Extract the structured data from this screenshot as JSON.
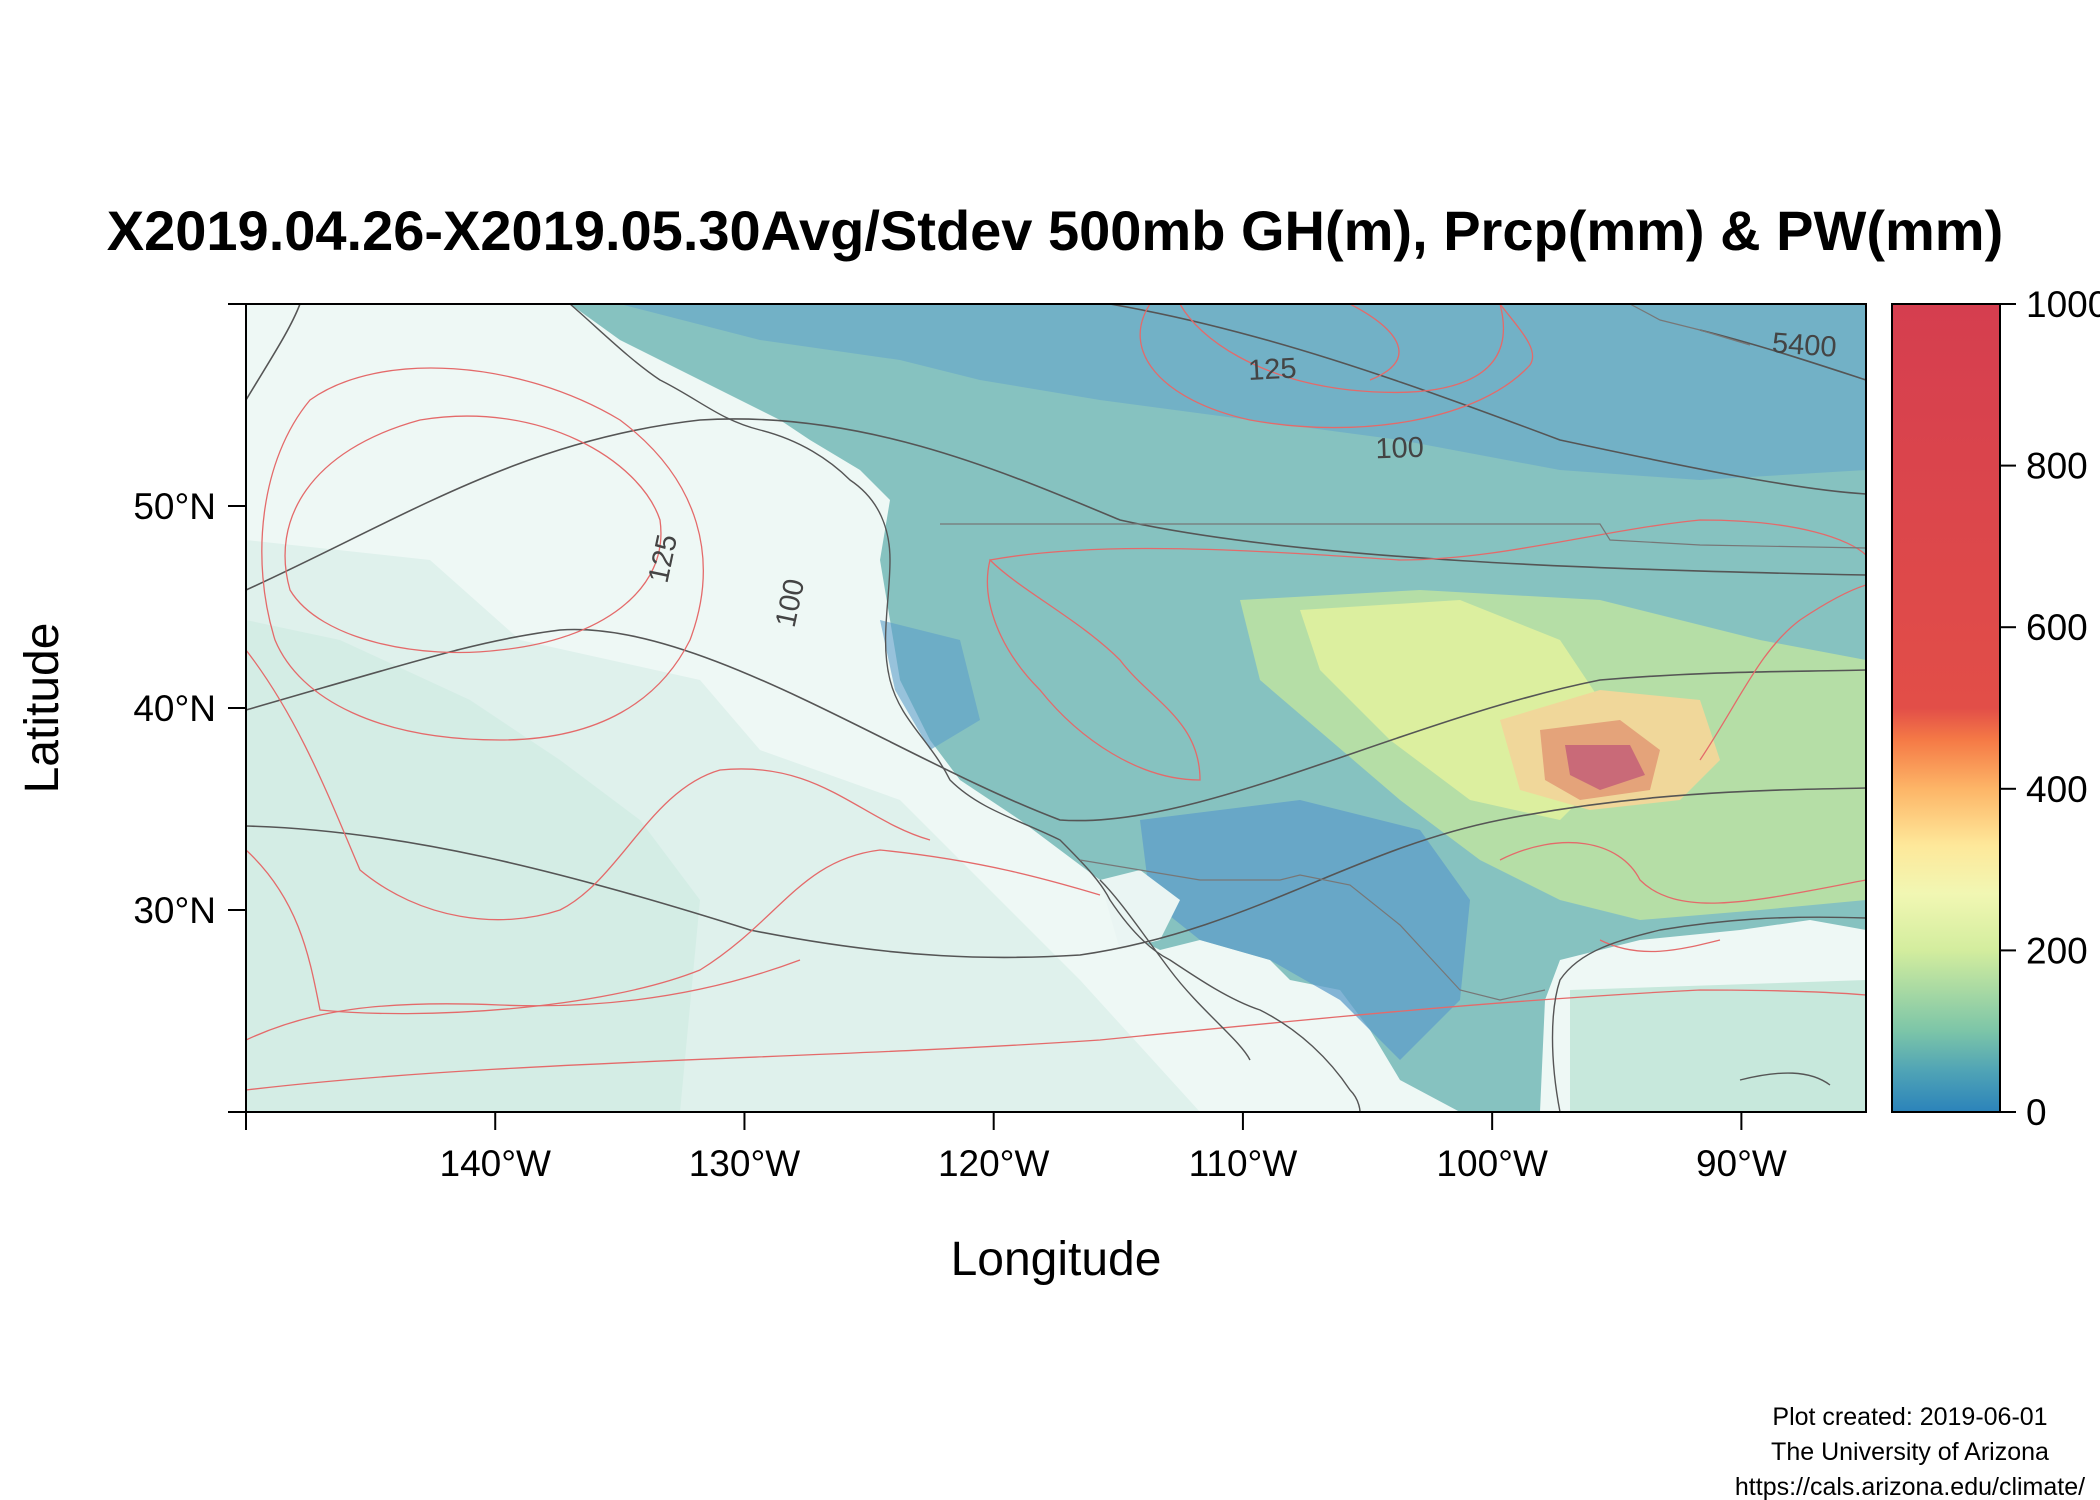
{
  "title": "X2019.04.26-X2019.05.30Avg/Stdev 500mb GH(m), Prcp(mm) & PW(mm)",
  "map": {
    "xlabel": "Longitude",
    "ylabel": "Latitude",
    "xlim": [
      -150,
      -85
    ],
    "ylim": [
      20,
      60
    ],
    "x_ticks": [
      {
        "value": -140,
        "label": "140°W"
      },
      {
        "value": -130,
        "label": "130°W"
      },
      {
        "value": -120,
        "label": "120°W"
      },
      {
        "value": -110,
        "label": "110°W"
      },
      {
        "value": -100,
        "label": "100°W"
      },
      {
        "value": -90,
        "label": "90°W"
      }
    ],
    "y_ticks": [
      {
        "value": 30,
        "label": "30°N"
      },
      {
        "value": 40,
        "label": "40°N"
      },
      {
        "value": 50,
        "label": "50°N"
      }
    ],
    "contour_labels": [
      {
        "text": "125",
        "lon": -108.8,
        "lat": 56.3,
        "rot": -3
      },
      {
        "text": "100",
        "lon": -103.7,
        "lat": 52.4,
        "rot": -2
      },
      {
        "text": "5400",
        "lon": -87.5,
        "lat": 57.5,
        "rot": 4
      },
      {
        "text": "125",
        "lon": -132.9,
        "lat": 47.3,
        "rot": -78
      },
      {
        "text": "100",
        "lon": -127.8,
        "lat": 45.1,
        "rot": -78
      }
    ]
  },
  "colorbar": {
    "range": [
      0,
      1000
    ],
    "ticks": [
      {
        "value": 0,
        "label": "0"
      },
      {
        "value": 200,
        "label": "200"
      },
      {
        "value": 400,
        "label": "400"
      },
      {
        "value": 600,
        "label": "600"
      },
      {
        "value": 800,
        "label": "800"
      },
      {
        "value": 1000,
        "label": "1000"
      }
    ],
    "colors": [
      "#2b83ba",
      "#5fb3b0",
      "#8fd1a4",
      "#c9e99f",
      "#f3f7b2",
      "#fee08b",
      "#fdae61",
      "#f46d43",
      "#d7404c",
      "#d53e4f"
    ]
  },
  "credits": {
    "line1": "Plot created: 2019-06-01",
    "line2": "The University of Arizona",
    "line3": "https://cals.arizona.edu/climate/"
  }
}
